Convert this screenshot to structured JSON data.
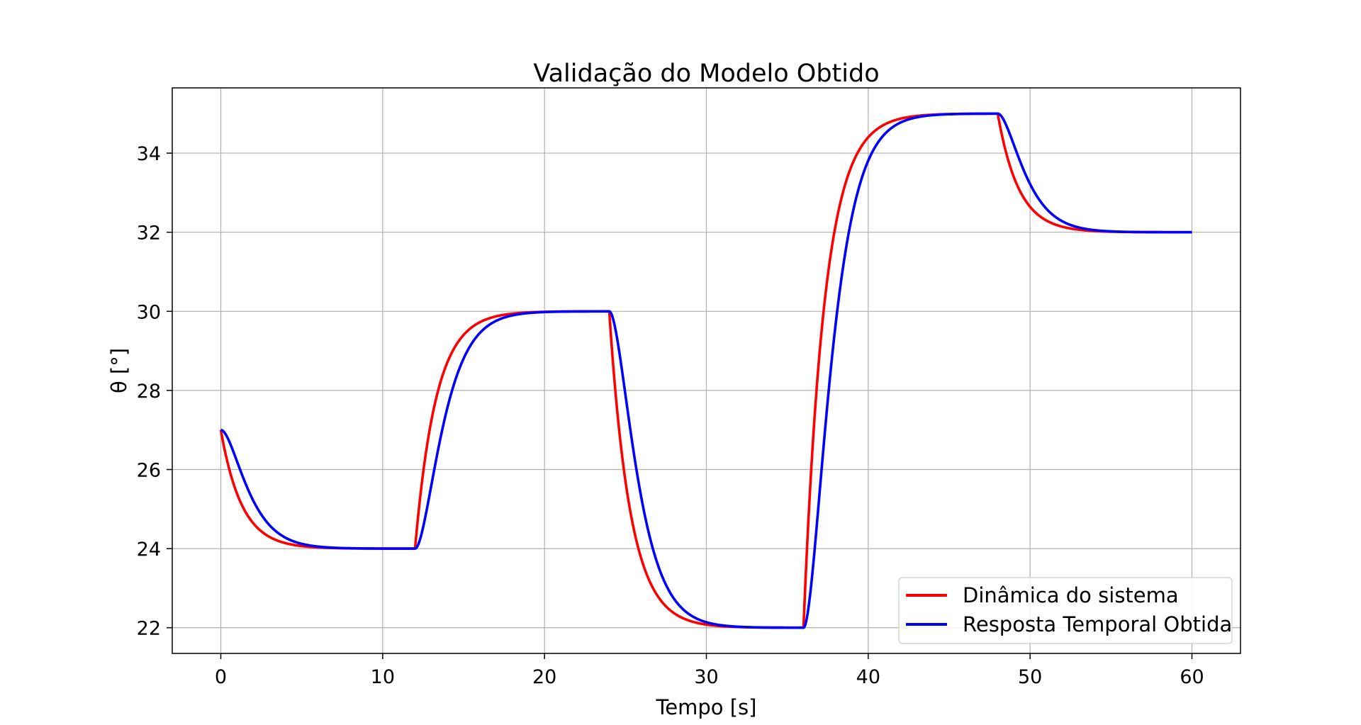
{
  "chart_data": {
    "type": "line",
    "title": "Validação do Modelo Obtido",
    "xlabel": "Tempo [s]",
    "ylabel": "θ [°]",
    "xlim": [
      -3,
      63
    ],
    "ylim": [
      21.35,
      35.65
    ],
    "xticks": [
      0,
      10,
      20,
      30,
      40,
      50,
      60
    ],
    "yticks": [
      22,
      24,
      26,
      28,
      30,
      32,
      34
    ],
    "grid": true,
    "legend_position": "lower-right",
    "steps": [
      {
        "t": 0,
        "start": 27,
        "target": 24
      },
      {
        "t": 12,
        "start": 24,
        "target": 30
      },
      {
        "t": 24,
        "start": 30,
        "target": 22
      },
      {
        "t": 36,
        "start": 22,
        "target": 35
      },
      {
        "t": 48,
        "start": 35,
        "target": 32
      }
    ],
    "t_end": 60,
    "series": [
      {
        "name": "Dinâmica do sistema",
        "color": "#ff0000",
        "time_constant_s": 1.3,
        "model": "first-order"
      },
      {
        "name": "Resposta Temporal Obtida",
        "color": "#0000ff",
        "time_constant_s": 1.0,
        "model": "second-order",
        "x": [
          0,
          12,
          24,
          36,
          48,
          60
        ],
        "values": [
          27,
          24,
          30,
          22,
          35,
          32
        ]
      }
    ]
  }
}
